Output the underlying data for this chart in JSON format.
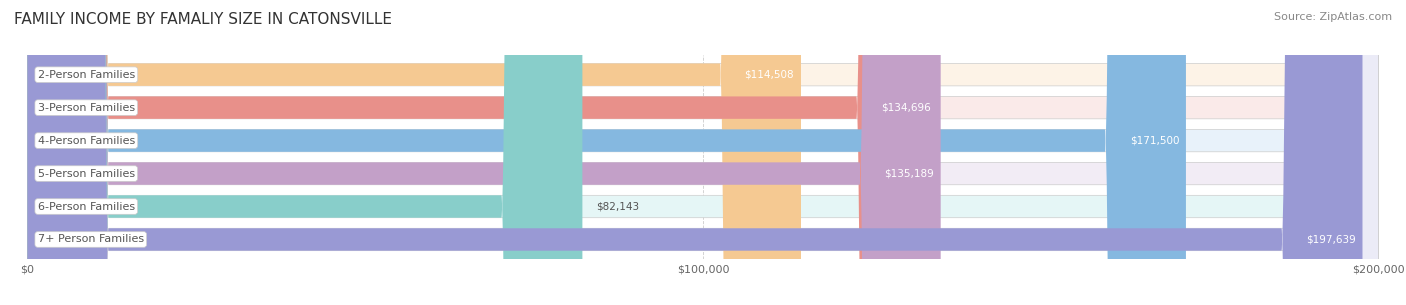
{
  "title": "FAMILY INCOME BY FAMALIY SIZE IN CATONSVILLE",
  "source": "Source: ZipAtlas.com",
  "categories": [
    "2-Person Families",
    "3-Person Families",
    "4-Person Families",
    "5-Person Families",
    "6-Person Families",
    "7+ Person Families"
  ],
  "values": [
    114508,
    134696,
    171500,
    135189,
    82143,
    197639
  ],
  "value_labels": [
    "$114,508",
    "$134,696",
    "$171,500",
    "$135,189",
    "$82,143",
    "$197,639"
  ],
  "bar_colors": [
    "#f5c992",
    "#e8908a",
    "#85b8e0",
    "#c3a0c8",
    "#88ceca",
    "#9999d4"
  ],
  "bar_bg_colors": [
    "#fdf3e7",
    "#faeae9",
    "#e8f2fa",
    "#f2ecf5",
    "#e5f6f6",
    "#ebebf7"
  ],
  "xlim": [
    0,
    200000
  ],
  "xtick_values": [
    0,
    100000,
    200000
  ],
  "xtick_labels": [
    "$0",
    "$100,000",
    "$200,000"
  ],
  "title_fontsize": 11,
  "source_fontsize": 8,
  "label_fontsize": 8,
  "value_fontsize": 7.5,
  "background_color": "#ffffff"
}
